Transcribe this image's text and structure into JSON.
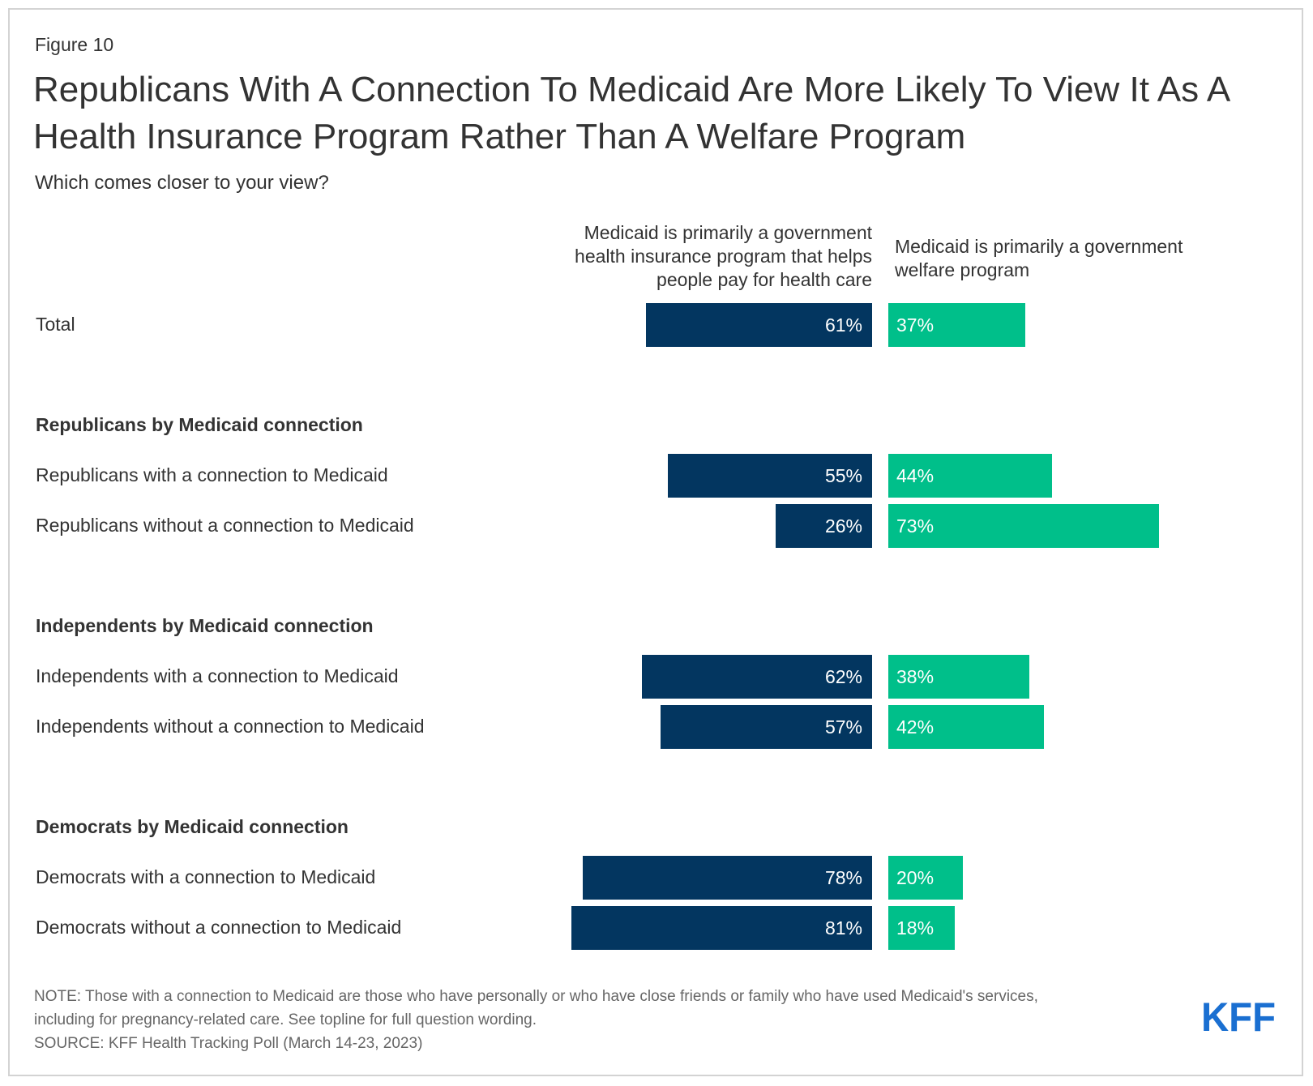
{
  "figure_label": "Figure 10",
  "title": "Republicans With A Connection To Medicaid Are More Likely To View It As A Health Insurance Program Rather Than A Welfare Program",
  "subtitle": "Which comes closer to your view?",
  "colors": {
    "left_bar": "#033660",
    "right_bar": "#00bf8a",
    "logo": "#1a6fd1"
  },
  "chart_data": {
    "type": "bar",
    "orientation": "horizontal-diverging",
    "title": "Republicans With A Connection To Medicaid Are More Likely To View It As A Health Insurance Program Rather Than A Welfare Program",
    "subtitle": "Which comes closer to your view?",
    "series": [
      {
        "name": "Medicaid is primarily a government health insurance program that helps people pay for health care",
        "color": "#033660"
      },
      {
        "name": "Medicaid is primarily a government welfare program",
        "color": "#00bf8a"
      }
    ],
    "value_max": 100,
    "rows": [
      {
        "label": "Total",
        "left": 61,
        "right": 37,
        "left_label": "61%",
        "right_label": "37%"
      },
      {
        "group": "Republicans by Medicaid connection"
      },
      {
        "label": "Republicans with a connection to Medicaid",
        "left": 55,
        "right": 44,
        "left_label": "55%",
        "right_label": "44%"
      },
      {
        "label": "Republicans without a connection to Medicaid",
        "left": 26,
        "right": 73,
        "left_label": "26%",
        "right_label": "73%"
      },
      {
        "group": "Independents by Medicaid connection"
      },
      {
        "label": "Independents with a connection to Medicaid",
        "left": 62,
        "right": 38,
        "left_label": "62%",
        "right_label": "38%"
      },
      {
        "label": "Independents without a connection to Medicaid",
        "left": 57,
        "right": 42,
        "left_label": "57%",
        "right_label": "42%"
      },
      {
        "group": "Democrats by Medicaid connection"
      },
      {
        "label": "Democrats with a connection to Medicaid",
        "left": 78,
        "right": 20,
        "left_label": "78%",
        "right_label": "20%"
      },
      {
        "label": "Democrats without a connection to Medicaid",
        "left": 81,
        "right": 18,
        "left_label": "81%",
        "right_label": "18%"
      }
    ]
  },
  "note_line1": "NOTE: Those with a connection to Medicaid are those who have personally or who have close friends or family who have used Medicaid's services,",
  "note_line2": "including for pregnancy-related care. See topline for full question wording.",
  "source": "SOURCE: KFF Health Tracking Poll (March 14-23, 2023)",
  "logo_text": "KFF"
}
